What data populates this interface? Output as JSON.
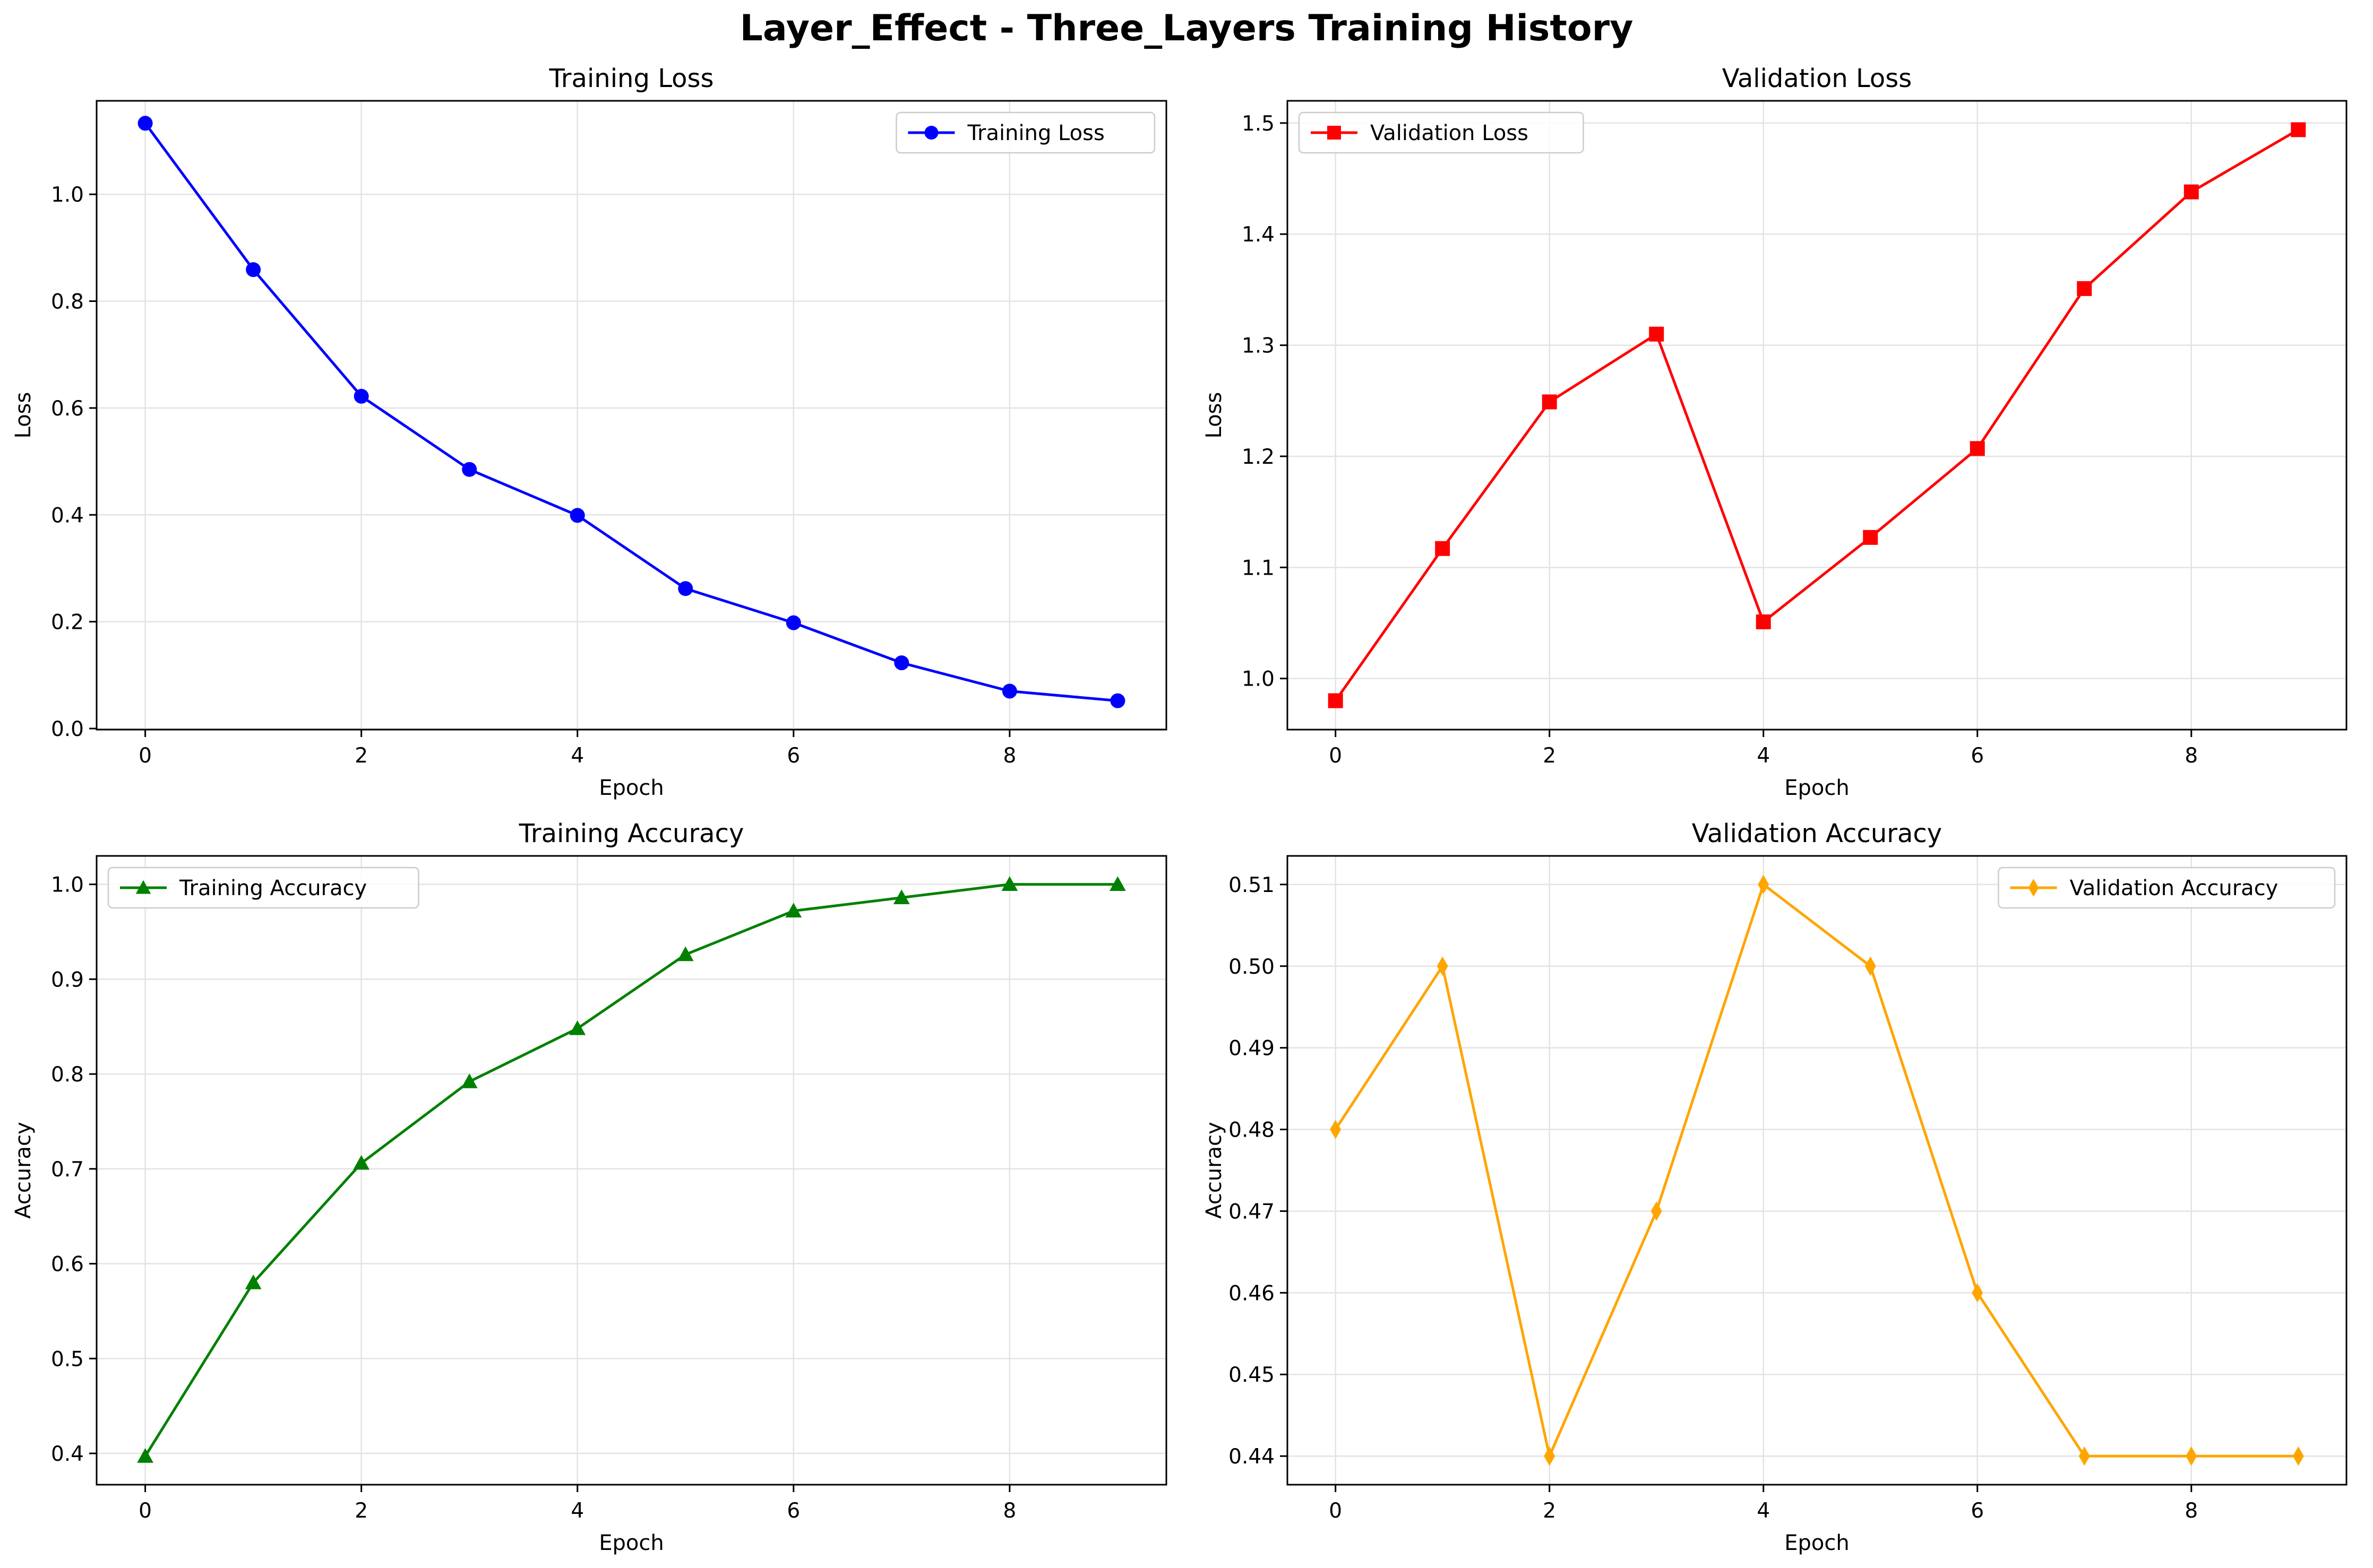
{
  "figure": {
    "title": "Layer_Effect - Three_Layers Training History"
  },
  "chart_data": [
    {
      "type": "line",
      "title": "Training Loss",
      "xlabel": "Epoch",
      "ylabel": "Loss",
      "x": [
        0,
        1,
        2,
        3,
        4,
        5,
        6,
        7,
        8,
        9
      ],
      "series": [
        {
          "name": "Training Loss",
          "color": "#0000ff",
          "marker": "circle",
          "values": [
            1.133,
            0.859,
            0.622,
            0.485,
            0.399,
            0.262,
            0.198,
            0.123,
            0.07,
            0.052
          ]
        }
      ],
      "xlim": [
        -0.45,
        9.45
      ],
      "ylim": [
        -0.002,
        1.175
      ],
      "xticks": [
        0,
        2,
        4,
        6,
        8
      ],
      "yticks": [
        0.0,
        0.2,
        0.4,
        0.6,
        0.8,
        1.0
      ],
      "ytick_labels": [
        "0.0",
        "0.2",
        "0.4",
        "0.6",
        "0.8",
        "1.0"
      ],
      "grid": true,
      "legend": "top-right"
    },
    {
      "type": "line",
      "title": "Validation Loss",
      "xlabel": "Epoch",
      "ylabel": "Loss",
      "x": [
        0,
        1,
        2,
        3,
        4,
        5,
        6,
        7,
        8,
        9
      ],
      "series": [
        {
          "name": "Validation Loss",
          "color": "#ff0000",
          "marker": "square",
          "values": [
            0.98,
            1.117,
            1.249,
            1.31,
            1.051,
            1.127,
            1.207,
            1.351,
            1.438,
            1.494
          ]
        }
      ],
      "xlim": [
        -0.45,
        9.45
      ],
      "ylim": [
        0.954,
        1.52
      ],
      "xticks": [
        0,
        2,
        4,
        6,
        8
      ],
      "yticks": [
        1.0,
        1.1,
        1.2,
        1.3,
        1.4,
        1.5
      ],
      "ytick_labels": [
        "1.0",
        "1.1",
        "1.2",
        "1.3",
        "1.4",
        "1.5"
      ],
      "grid": true,
      "legend": "top-left"
    },
    {
      "type": "line",
      "title": "Training Accuracy",
      "xlabel": "Epoch",
      "ylabel": "Accuracy",
      "x": [
        0,
        1,
        2,
        3,
        4,
        5,
        6,
        7,
        8,
        9
      ],
      "series": [
        {
          "name": "Training Accuracy",
          "color": "#008000",
          "marker": "triangle",
          "values": [
            0.397,
            0.58,
            0.706,
            0.792,
            0.848,
            0.926,
            0.972,
            0.986,
            1.0,
            1.0
          ]
        }
      ],
      "xlim": [
        -0.45,
        9.45
      ],
      "ylim": [
        0.367,
        1.03
      ],
      "xticks": [
        0,
        2,
        4,
        6,
        8
      ],
      "yticks": [
        0.4,
        0.5,
        0.6,
        0.7,
        0.8,
        0.9,
        1.0
      ],
      "ytick_labels": [
        "0.4",
        "0.5",
        "0.6",
        "0.7",
        "0.8",
        "0.9",
        "1.0"
      ],
      "grid": true,
      "legend": "top-left"
    },
    {
      "type": "line",
      "title": "Validation Accuracy",
      "xlabel": "Epoch",
      "ylabel": "Accuracy",
      "x": [
        0,
        1,
        2,
        3,
        4,
        5,
        6,
        7,
        8,
        9
      ],
      "series": [
        {
          "name": "Validation Accuracy",
          "color": "#ffa500",
          "marker": "diamond",
          "values": [
            0.48,
            0.5,
            0.44,
            0.47,
            0.51,
            0.5,
            0.46,
            0.44,
            0.44,
            0.44
          ]
        }
      ],
      "xlim": [
        -0.45,
        9.45
      ],
      "ylim": [
        0.4365,
        0.5135
      ],
      "xticks": [
        0,
        2,
        4,
        6,
        8
      ],
      "yticks": [
        0.44,
        0.45,
        0.46,
        0.47,
        0.48,
        0.49,
        0.5,
        0.51
      ],
      "ytick_labels": [
        "0.44",
        "0.45",
        "0.46",
        "0.47",
        "0.48",
        "0.49",
        "0.50",
        "0.51"
      ],
      "grid": true,
      "legend": "top-right"
    }
  ]
}
